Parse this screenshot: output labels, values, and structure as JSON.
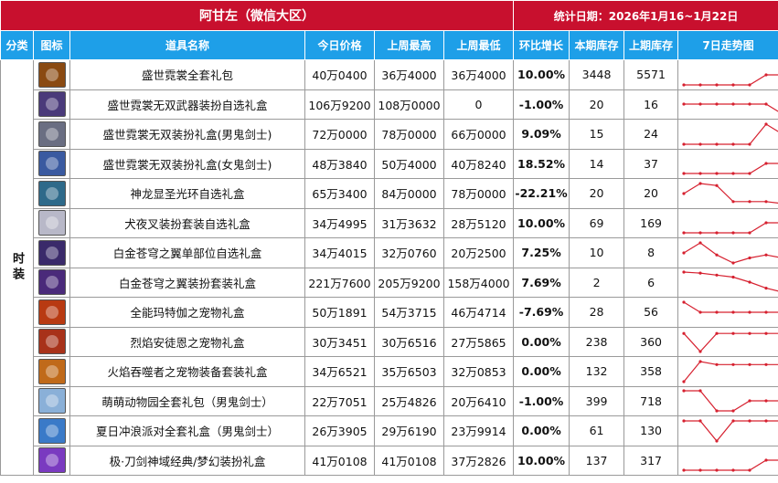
{
  "header": {
    "title": "阿甘左（微信大区）",
    "date_label": "统计日期：2026年1月16~1月22日"
  },
  "columns": {
    "category": "分类",
    "icon": "图标",
    "name": "道具名称",
    "today": "今日价格",
    "last_high": "上周最高",
    "last_low": "上周最低",
    "change": "环比增长",
    "stock": "本期库存",
    "last_stock": "上期库存",
    "trend": "7日走势图"
  },
  "category": "时装",
  "colors": {
    "up": "#e8001c",
    "down": "#1aa34a",
    "header_red": "#c8102e",
    "header_blue": "#1e9fe8",
    "spark": "#d6202f"
  },
  "items": [
    {
      "name": "盛世霓裳全套礼包",
      "today": "40万0400",
      "high": "36万4000",
      "low": "36万4000",
      "change": "10.00%",
      "trend_dir": "up",
      "stock": "3448",
      "last_stock": "5571",
      "icon": "gift-chest-icon",
      "icon_color": "#8a4a12",
      "trend": [
        1,
        1,
        1,
        1,
        1,
        2,
        2
      ]
    },
    {
      "name": "盛世霓裳无双武器装扮自选礼盒",
      "today": "106万9200",
      "high": "108万0000",
      "low": "0",
      "change": "-1.00%",
      "trend_dir": "down",
      "stock": "20",
      "last_stock": "16",
      "icon": "weapon-box-icon",
      "icon_color": "#4a3a7a",
      "trend": [
        2,
        2,
        2,
        2,
        2,
        2,
        1
      ]
    },
    {
      "name": "盛世霓裳无双装扮礼盒(男鬼剑士)",
      "today": "72万0000",
      "high": "78万0000",
      "low": "66万0000",
      "change": "9.09%",
      "trend_dir": "up",
      "stock": "15",
      "last_stock": "24",
      "icon": "male-slayer-icon",
      "icon_color": "#6a6e82",
      "trend": [
        1,
        1,
        1,
        1,
        1,
        3,
        2
      ]
    },
    {
      "name": "盛世霓裳无双装扮礼盒(女鬼剑士)",
      "today": "48万3840",
      "high": "50万4000",
      "low": "40万8240",
      "change": "18.52%",
      "trend_dir": "up",
      "stock": "14",
      "last_stock": "37",
      "icon": "female-slayer-icon",
      "icon_color": "#3a5aa0",
      "trend": [
        1,
        1,
        1,
        1,
        1,
        2,
        2
      ]
    },
    {
      "name": "神龙显圣光环自选礼盒",
      "today": "65万3400",
      "high": "84万0000",
      "low": "78万0000",
      "change": "-22.21%",
      "trend_dir": "down",
      "stock": "20",
      "last_stock": "20",
      "icon": "dragon-aura-icon",
      "icon_color": "#2e6a8a",
      "trend": [
        2,
        3,
        2.8,
        1.2,
        1.2,
        1.2,
        1
      ]
    },
    {
      "name": "犬夜叉装扮套装自选礼盒",
      "today": "34万4995",
      "high": "31万3632",
      "low": "28万5120",
      "change": "10.00%",
      "trend_dir": "up",
      "stock": "69",
      "last_stock": "169",
      "icon": "inuyasha-icon",
      "icon_color": "#b8b8c8",
      "trend": [
        1,
        1,
        1,
        1,
        1,
        2,
        2
      ]
    },
    {
      "name": "白金苍穹之翼单部位自选礼盒",
      "today": "34万4015",
      "high": "32万0760",
      "low": "20万2500",
      "change": "7.25%",
      "trend_dir": "up",
      "stock": "10",
      "last_stock": "8",
      "icon": "wing-single-icon",
      "icon_color": "#3a2a6a",
      "trend": [
        2,
        3,
        1.8,
        1,
        1.5,
        1.8,
        1.5
      ]
    },
    {
      "name": "白金苍穹之翼装扮套装礼盒",
      "today": "221万7600",
      "high": "205万9200",
      "low": "158万4000",
      "change": "7.69%",
      "trend_dir": "up",
      "stock": "2",
      "last_stock": "6",
      "icon": "wing-set-icon",
      "icon_color": "#4a2a7a",
      "trend": [
        3,
        2.9,
        2.7,
        2.5,
        2,
        1.4,
        1
      ]
    },
    {
      "name": "全能玛特伽之宠物礼盒",
      "today": "50万1891",
      "high": "54万3715",
      "low": "46万4714",
      "change": "-7.69%",
      "trend_dir": "down",
      "stock": "28",
      "last_stock": "56",
      "icon": "pet-box-red-icon",
      "icon_color": "#b83a12",
      "trend": [
        3,
        2,
        2,
        2,
        2,
        2,
        2
      ]
    },
    {
      "name": "烈焰安徒恩之宠物礼盒",
      "today": "30万3451",
      "high": "30万6516",
      "low": "27万5865",
      "change": "0.00%",
      "trend_dir": "flat",
      "stock": "238",
      "last_stock": "360",
      "icon": "pet-box-flame-icon",
      "icon_color": "#a8321a",
      "trend": [
        2.8,
        1,
        2.8,
        2.8,
        2.8,
        2.8,
        2.8
      ]
    },
    {
      "name": "火焰吞噬者之宠物装备套装礼盒",
      "today": "34万6521",
      "high": "35万6503",
      "low": "32万0853",
      "change": "0.00%",
      "trend_dir": "flat",
      "stock": "132",
      "last_stock": "358",
      "icon": "pet-equip-icon",
      "icon_color": "#c06a1a",
      "trend": [
        1,
        3,
        2.7,
        2.7,
        2.7,
        2.7,
        2.7
      ]
    },
    {
      "name": "萌萌动物园全套礼包（男鬼剑士）",
      "today": "22万7051",
      "high": "25万4826",
      "low": "20万6410",
      "change": "-1.00%",
      "trend_dir": "down",
      "stock": "399",
      "last_stock": "718",
      "icon": "animal-zoo-icon",
      "icon_color": "#8ab0d8",
      "trend": [
        3,
        3,
        1,
        1,
        2,
        2,
        2
      ]
    },
    {
      "name": "夏日冲浪派对全套礼盒（男鬼剑士）",
      "today": "26万3905",
      "high": "29万6190",
      "low": "23万9914",
      "change": "0.00%",
      "trend_dir": "flat",
      "stock": "61",
      "last_stock": "130",
      "icon": "summer-surf-icon",
      "icon_color": "#3a7ac8",
      "trend": [
        3,
        3,
        1,
        3,
        3,
        3,
        3
      ]
    },
    {
      "name": "极·刀剑神域经典/梦幻装扮礼盒",
      "today": "41万0108",
      "high": "41万0108",
      "low": "37万2826",
      "change": "10.00%",
      "trend_dir": "up",
      "stock": "137",
      "last_stock": "317",
      "icon": "sao-box-icon",
      "icon_color": "#7a3ac0",
      "trend": [
        1,
        1,
        1,
        1,
        1,
        2,
        2
      ]
    }
  ]
}
